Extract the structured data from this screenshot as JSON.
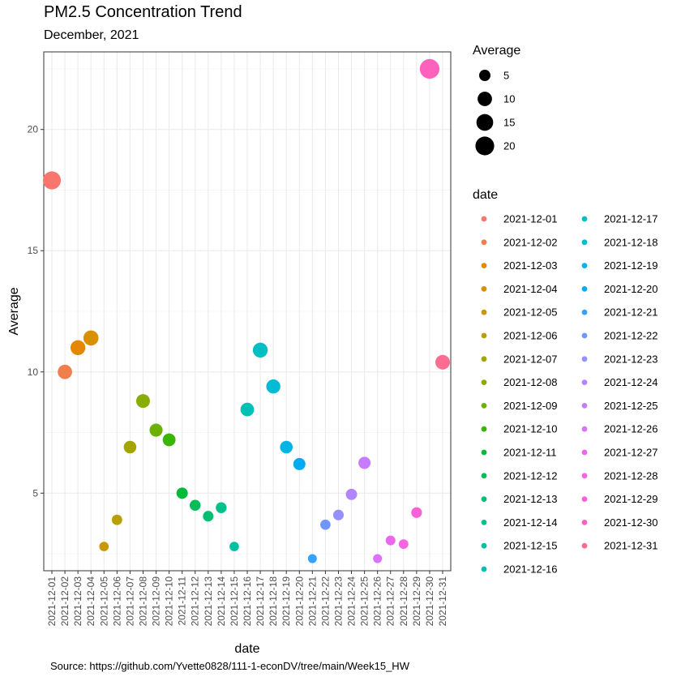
{
  "chart_data": {
    "type": "scatter",
    "title": "PM2.5 Concentration Trend",
    "subtitle": "December, 2021",
    "caption": "Source: https://github.com/Yvette0828/111-1-econDV/tree/main/Week15_HW",
    "xlabel": "date",
    "ylabel": "Average",
    "ylim": [
      1.8,
      23.2
    ],
    "y_ticks": [
      5,
      10,
      15,
      20
    ],
    "grid": true,
    "size_legend": {
      "title": "Average",
      "values": [
        5,
        10,
        15,
        20
      ]
    },
    "color_legend": {
      "title": "date"
    },
    "points": [
      {
        "date": "2021-12-01",
        "value": 17.9,
        "color": "#F8766D"
      },
      {
        "date": "2021-12-02",
        "value": 10.0,
        "color": "#F07F4E"
      },
      {
        "date": "2021-12-03",
        "value": 11.0,
        "color": "#E58700"
      },
      {
        "date": "2021-12-04",
        "value": 11.4,
        "color": "#D89000"
      },
      {
        "date": "2021-12-05",
        "value": 2.8,
        "color": "#C99800"
      },
      {
        "date": "2021-12-06",
        "value": 3.9,
        "color": "#B8A000"
      },
      {
        "date": "2021-12-07",
        "value": 6.9,
        "color": "#A3A500"
      },
      {
        "date": "2021-12-08",
        "value": 8.8,
        "color": "#8AAB00"
      },
      {
        "date": "2021-12-09",
        "value": 7.6,
        "color": "#6BB100"
      },
      {
        "date": "2021-12-10",
        "value": 7.2,
        "color": "#39B600"
      },
      {
        "date": "2021-12-11",
        "value": 5.0,
        "color": "#00BA38"
      },
      {
        "date": "2021-12-12",
        "value": 4.5,
        "color": "#00BC59"
      },
      {
        "date": "2021-12-13",
        "value": 4.05,
        "color": "#00BF74"
      },
      {
        "date": "2021-12-14",
        "value": 4.4,
        "color": "#00C08B"
      },
      {
        "date": "2021-12-15",
        "value": 2.8,
        "color": "#00C1A2"
      },
      {
        "date": "2021-12-16",
        "value": 8.45,
        "color": "#00BFB5"
      },
      {
        "date": "2021-12-17",
        "value": 10.9,
        "color": "#00BFC4"
      },
      {
        "date": "2021-12-18",
        "value": 9.4,
        "color": "#00BAD6"
      },
      {
        "date": "2021-12-19",
        "value": 6.9,
        "color": "#00B4E5"
      },
      {
        "date": "2021-12-20",
        "value": 6.2,
        "color": "#00ABF0"
      },
      {
        "date": "2021-12-21",
        "value": 2.3,
        "color": "#35A2FF"
      },
      {
        "date": "2021-12-22",
        "value": 3.7,
        "color": "#6F95FF"
      },
      {
        "date": "2021-12-23",
        "value": 4.1,
        "color": "#9590FF"
      },
      {
        "date": "2021-12-24",
        "value": 4.95,
        "color": "#B384FF"
      },
      {
        "date": "2021-12-25",
        "value": 6.25,
        "color": "#C77CFF"
      },
      {
        "date": "2021-12-26",
        "value": 2.3,
        "color": "#DC71FA"
      },
      {
        "date": "2021-12-27",
        "value": 3.05,
        "color": "#EB68ED"
      },
      {
        "date": "2021-12-28",
        "value": 2.9,
        "color": "#F564E3"
      },
      {
        "date": "2021-12-29",
        "value": 4.2,
        "color": "#FB61D7"
      },
      {
        "date": "2021-12-30",
        "value": 22.5,
        "color": "#FF62BC"
      },
      {
        "date": "2021-12-31",
        "value": 10.4,
        "color": "#FF6C91"
      }
    ]
  }
}
